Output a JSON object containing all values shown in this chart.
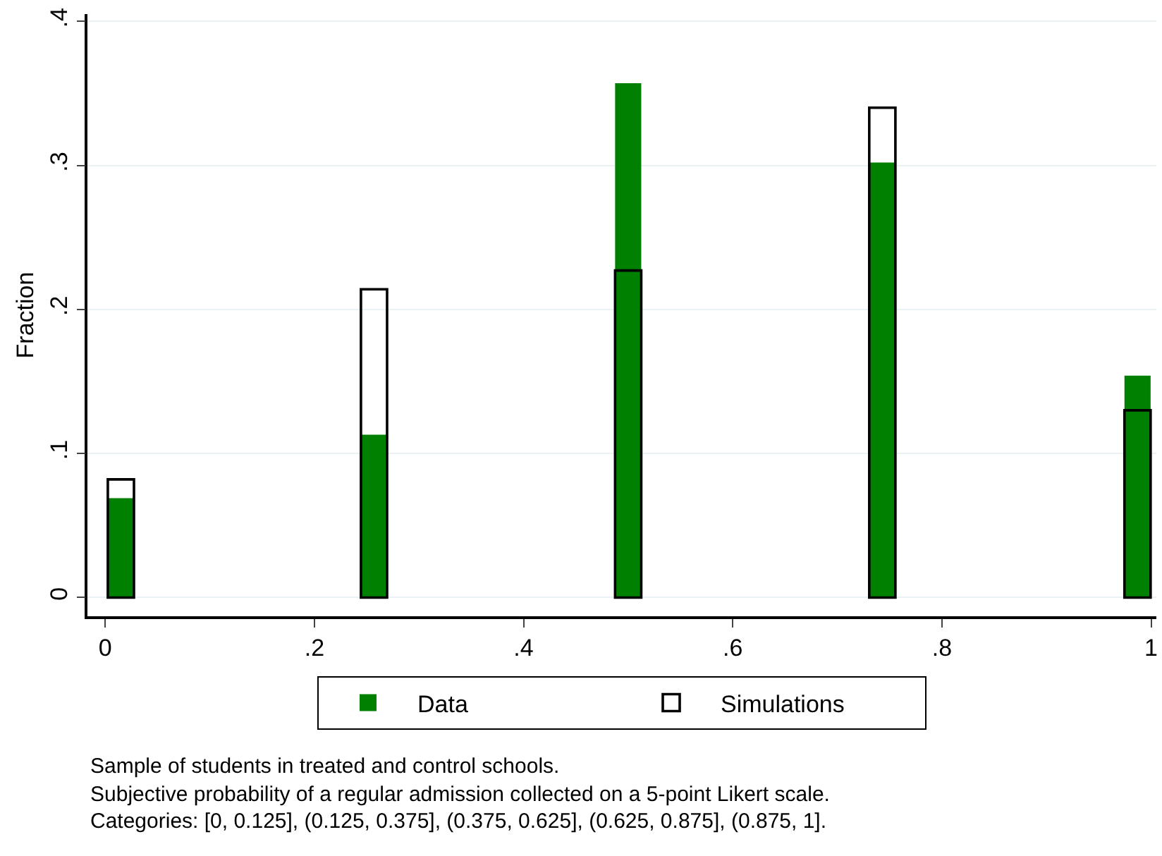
{
  "chart_data": {
    "type": "bar",
    "ylabel": "Fraction",
    "x": [
      0.015,
      0.257,
      0.5,
      0.743,
      0.987
    ],
    "series": [
      {
        "name": "Data",
        "color": "#008000",
        "values": [
          0.069,
          0.113,
          0.357,
          0.302,
          0.154
        ]
      },
      {
        "name": "Simulations",
        "color": "#000000",
        "values": [
          0.082,
          0.214,
          0.227,
          0.34,
          0.13
        ]
      }
    ],
    "xlim": [
      -0.017,
      1.005
    ],
    "ylim": [
      -0.013,
      0.405
    ],
    "xticks": [
      0,
      {
        "value": 0.2,
        "label": ".2"
      },
      {
        "value": 0.4,
        "label": ".4"
      },
      {
        "value": 0.6,
        "label": ".6"
      },
      {
        "value": 0.8,
        "label": ".8"
      },
      1
    ],
    "yticks": [
      0,
      {
        "value": 0.1,
        "label": ".1"
      },
      {
        "value": 0.2,
        "label": ".2"
      },
      {
        "value": 0.3,
        "label": ".3"
      },
      {
        "value": 0.4,
        "label": ".4"
      }
    ],
    "grid": "y",
    "legend": "bottom",
    "annotations": [
      "Sample of students in treated and control schools.",
      "Subjective probability of a regular admission collected on a 5-point Likert scale.",
      "Categories: [0, 0.125], (0.125, 0.375], (0.375, 0.625], (0.625, 0.875], (0.875, 1]."
    ]
  }
}
